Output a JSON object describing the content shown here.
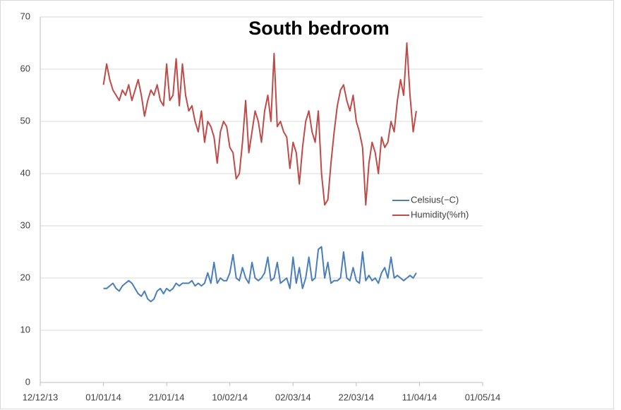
{
  "chart_data": {
    "type": "line",
    "title": "South bedroom",
    "x": [
      "2014-01-01",
      "2014-01-02",
      "2014-01-03",
      "2014-01-04",
      "2014-01-05",
      "2014-01-06",
      "2014-01-07",
      "2014-01-08",
      "2014-01-09",
      "2014-01-10",
      "2014-01-11",
      "2014-01-12",
      "2014-01-13",
      "2014-01-14",
      "2014-01-15",
      "2014-01-16",
      "2014-01-17",
      "2014-01-18",
      "2014-01-19",
      "2014-01-20",
      "2014-01-21",
      "2014-01-22",
      "2014-01-23",
      "2014-01-24",
      "2014-01-25",
      "2014-01-26",
      "2014-01-27",
      "2014-01-28",
      "2014-01-29",
      "2014-01-30",
      "2014-01-31",
      "2014-02-01",
      "2014-02-02",
      "2014-02-03",
      "2014-02-04",
      "2014-02-05",
      "2014-02-06",
      "2014-02-07",
      "2014-02-08",
      "2014-02-09",
      "2014-02-10",
      "2014-02-11",
      "2014-02-12",
      "2014-02-13",
      "2014-02-14",
      "2014-02-15",
      "2014-02-16",
      "2014-02-17",
      "2014-02-18",
      "2014-02-19",
      "2014-02-20",
      "2014-02-21",
      "2014-02-22",
      "2014-02-23",
      "2014-02-24",
      "2014-02-25",
      "2014-02-26",
      "2014-02-27",
      "2014-02-28",
      "2014-03-01",
      "2014-03-02",
      "2014-03-03",
      "2014-03-04",
      "2014-03-05",
      "2014-03-06",
      "2014-03-07",
      "2014-03-08",
      "2014-03-09",
      "2014-03-10",
      "2014-03-11",
      "2014-03-12",
      "2014-03-13",
      "2014-03-14",
      "2014-03-15",
      "2014-03-16",
      "2014-03-17",
      "2014-03-18",
      "2014-03-19",
      "2014-03-20",
      "2014-03-21",
      "2014-03-22",
      "2014-03-23",
      "2014-03-24",
      "2014-03-25",
      "2014-03-26",
      "2014-03-27",
      "2014-03-28",
      "2014-03-29",
      "2014-03-30",
      "2014-03-31",
      "2014-04-01",
      "2014-04-02",
      "2014-04-03",
      "2014-04-04",
      "2014-04-05",
      "2014-04-06",
      "2014-04-07",
      "2014-04-08",
      "2014-04-09",
      "2014-04-10"
    ],
    "series": [
      {
        "name": "Celsius(−C)",
        "color": "#4a7ebb",
        "values": [
          18,
          18,
          18.5,
          19,
          18,
          17.5,
          18.5,
          19,
          19.5,
          19,
          18,
          17,
          16.5,
          17.5,
          16,
          15.5,
          16,
          17.5,
          18,
          17,
          18,
          17.5,
          18,
          19,
          18.5,
          19,
          19,
          19,
          19.5,
          18.5,
          19,
          18.5,
          19,
          21,
          19,
          23,
          19,
          20,
          19.5,
          19.5,
          21,
          24.5,
          20,
          19.5,
          22,
          20,
          19,
          23,
          20,
          19.5,
          20,
          21,
          24,
          19.5,
          20,
          23,
          19,
          19.5,
          20,
          18,
          24,
          19,
          22,
          18,
          20,
          24,
          19.5,
          20,
          25.5,
          26,
          20,
          23,
          19,
          19.5,
          19.5,
          20,
          25,
          20,
          19.5,
          22,
          19.5,
          19,
          25,
          19.5,
          20.5,
          19.5,
          20,
          19,
          21,
          22,
          20,
          24,
          20,
          20.5,
          20,
          19.5,
          20,
          20.5,
          20,
          21
        ]
      },
      {
        "name": "Humidity(%rh)",
        "color": "#be4b48",
        "values": [
          57,
          61,
          58,
          56,
          55,
          54,
          56,
          55,
          57,
          54,
          56,
          58,
          55,
          51,
          54,
          56,
          55,
          57,
          54,
          53,
          61,
          54,
          55,
          62,
          53,
          61,
          55,
          52,
          53,
          50,
          48,
          52,
          46,
          50,
          49,
          47,
          42,
          48,
          50,
          49,
          45,
          44,
          39,
          40,
          46,
          54,
          44,
          48,
          52,
          50,
          46,
          52,
          55,
          50,
          63,
          49,
          50,
          48,
          47,
          41,
          46,
          44,
          38,
          45,
          50,
          52,
          48,
          46,
          52,
          40,
          34,
          35,
          42,
          48,
          53,
          56,
          57,
          54,
          52,
          55,
          50,
          48,
          45,
          34,
          42,
          46,
          44,
          40,
          47,
          45,
          46,
          50,
          48,
          54,
          58,
          55,
          65,
          55,
          48,
          52
        ]
      }
    ],
    "xlim": [
      "2013-12-12",
      "2014-05-01"
    ],
    "xticks": [
      {
        "value": "2013-12-12",
        "label": "12/12/13"
      },
      {
        "value": "2014-01-01",
        "label": "01/01/14"
      },
      {
        "value": "2014-01-21",
        "label": "21/01/14"
      },
      {
        "value": "2014-02-10",
        "label": "10/02/14"
      },
      {
        "value": "2014-03-02",
        "label": "02/03/14"
      },
      {
        "value": "2014-03-22",
        "label": "22/03/14"
      },
      {
        "value": "2014-04-11",
        "label": "11/04/14"
      },
      {
        "value": "2014-05-01",
        "label": "01/05/14"
      }
    ],
    "ylim": [
      0,
      70
    ],
    "yticks": [
      0,
      10,
      20,
      30,
      40,
      50,
      60,
      70
    ],
    "grid": true,
    "legend": "right"
  }
}
